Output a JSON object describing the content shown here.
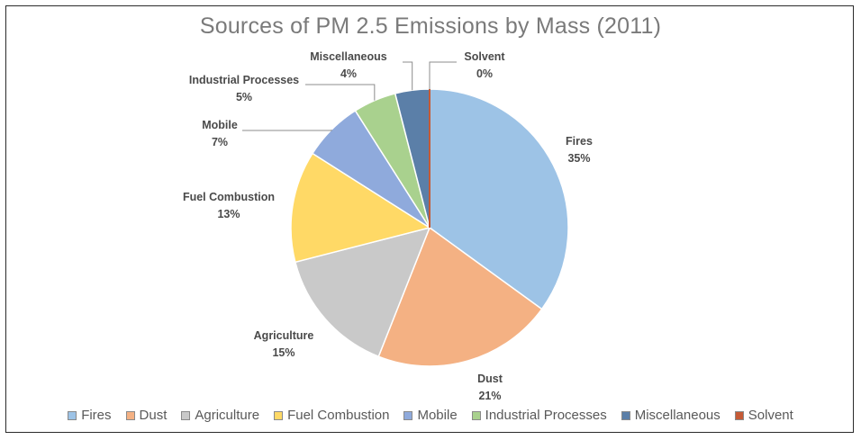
{
  "chart_data": {
    "type": "pie",
    "title": "Sources of PM 2.5 Emissions by Mass (2011)",
    "categories": [
      "Fires",
      "Dust",
      "Agriculture",
      "Fuel Combustion",
      "Mobile",
      "Industrial Processes",
      "Miscellaneous",
      "Solvent"
    ],
    "values": [
      35,
      21,
      15,
      13,
      7,
      5,
      4,
      0
    ],
    "data_labels": [
      "35%",
      "21%",
      "15%",
      "13%",
      "7%",
      "5%",
      "4%",
      "0%"
    ],
    "colors": [
      "#9DC3E6",
      "#F4B183",
      "#C9C9C9",
      "#FFD966",
      "#8FAADC",
      "#A9D18E",
      "#5B7FA8",
      "#C55A36"
    ],
    "legend_position": "bottom"
  }
}
